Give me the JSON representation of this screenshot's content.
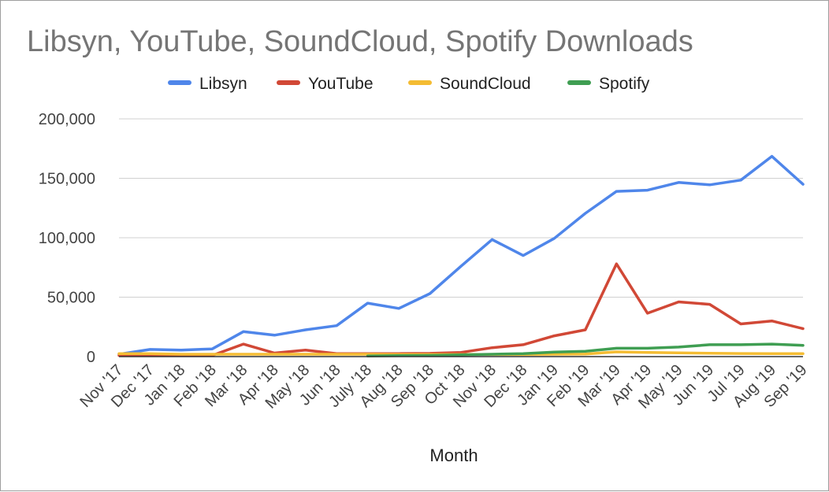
{
  "chart_data": {
    "type": "line",
    "title": "Libsyn, YouTube, SoundCloud, Spotify Downloads",
    "xlabel": "Month",
    "ylabel": "",
    "ylim": [
      0,
      200000
    ],
    "yticks": [
      0,
      50000,
      100000,
      150000,
      200000
    ],
    "ytick_labels": [
      "0",
      "50,000",
      "100,000",
      "150,000",
      "200,000"
    ],
    "grid": true,
    "legend_position": "top",
    "categories": [
      "Nov '17",
      "Dec '17",
      "Jan '18",
      "Feb '18",
      "Mar '18",
      "Apr '18",
      "May '18",
      "Jun '18",
      "July '18",
      "Aug '18",
      "Sep '18",
      "Oct '18",
      "Nov '18",
      "Dec '18",
      "Jan '19",
      "Feb '19",
      "Mar '19",
      "Apr '19",
      "May '19",
      "Jun '19",
      "Jul '19",
      "Aug '19",
      "Sep '19"
    ],
    "series": [
      {
        "name": "Libsyn",
        "color": "#4f86ea",
        "values": [
          2000,
          6000,
          5500,
          6500,
          21000,
          18000,
          22500,
          26000,
          45000,
          40500,
          53000,
          76000,
          98500,
          85000,
          99500,
          120500,
          139000,
          140000,
          146500,
          144500,
          148500,
          168500,
          145000
        ]
      },
      {
        "name": "YouTube",
        "color": "#d14836",
        "values": [
          1000,
          1200,
          1000,
          1000,
          10500,
          3000,
          5500,
          2500,
          2500,
          2500,
          2700,
          3500,
          7500,
          10000,
          17500,
          22500,
          78000,
          36500,
          46000,
          44000,
          27500,
          30000,
          23500
        ]
      },
      {
        "name": "SoundCloud",
        "color": "#f4bc33",
        "values": [
          2500,
          2500,
          2000,
          2000,
          2000,
          2000,
          2000,
          2000,
          2000,
          1800,
          1800,
          1800,
          1800,
          1800,
          2000,
          2200,
          4000,
          3500,
          3200,
          2800,
          2600,
          2500,
          2500
        ]
      },
      {
        "name": "Spotify",
        "color": "#3f9e52",
        "values": [
          null,
          null,
          null,
          null,
          null,
          null,
          null,
          null,
          500,
          800,
          1000,
          1500,
          2000,
          2500,
          3800,
          4500,
          7000,
          7000,
          8000,
          10000,
          10000,
          10500,
          9500
        ]
      }
    ]
  }
}
